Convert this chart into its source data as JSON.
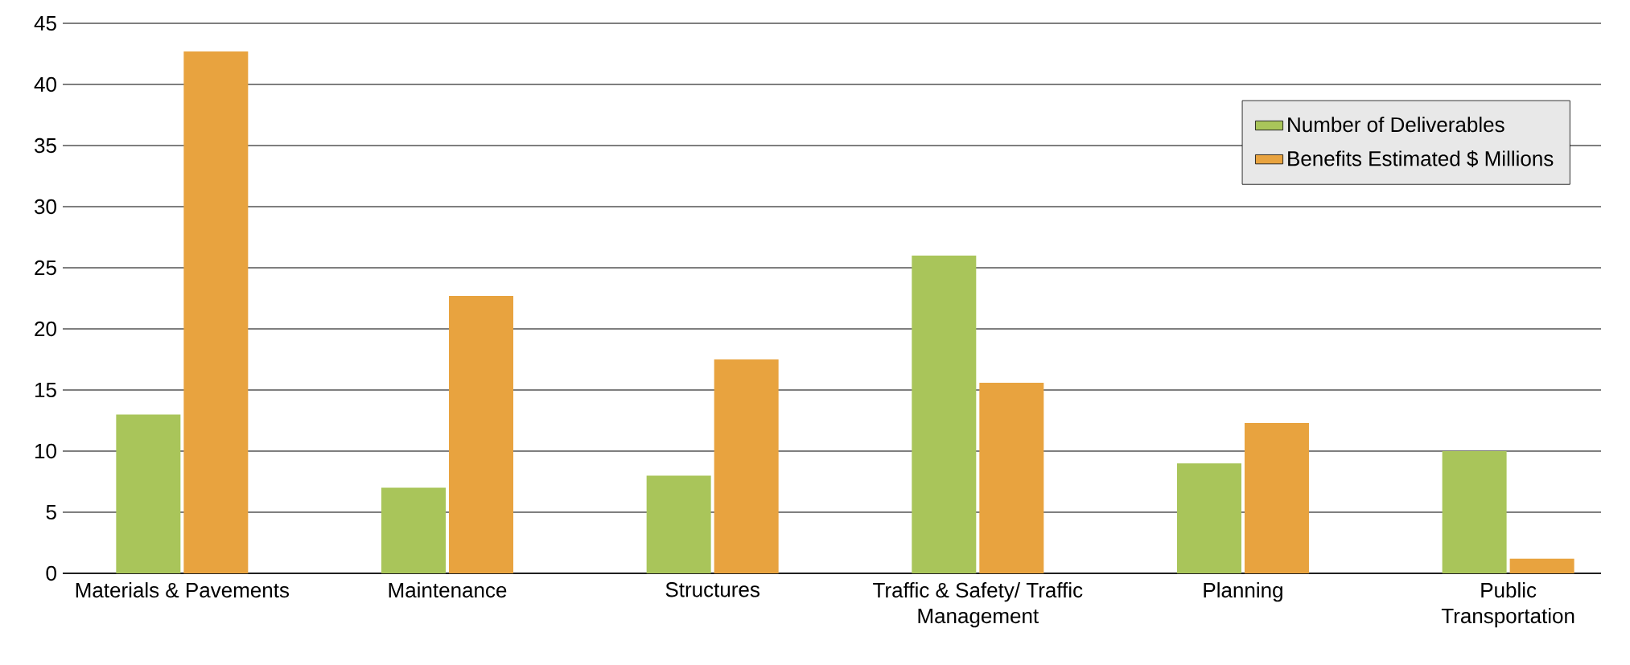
{
  "chart_data": {
    "type": "bar",
    "categories": [
      "Materials & Pavements",
      "Maintenance",
      "Structures",
      "Traffic & Safety/ Traffic Management",
      "Planning",
      "Public Transportation"
    ],
    "series": [
      {
        "name": "Number of Deliverables",
        "color": "#a9c55a",
        "values": [
          13,
          7,
          8,
          26,
          9,
          10
        ]
      },
      {
        "name": "Benefits Estimated $ Millions",
        "color": "#e8a33f",
        "values": [
          42.7,
          22.7,
          17.5,
          15.6,
          12.3,
          1.2
        ]
      }
    ],
    "ylim": [
      0,
      45
    ],
    "yticks": [
      0,
      5,
      10,
      15,
      20,
      25,
      30,
      35,
      40,
      45
    ],
    "grid": "y",
    "legend": "top right"
  }
}
